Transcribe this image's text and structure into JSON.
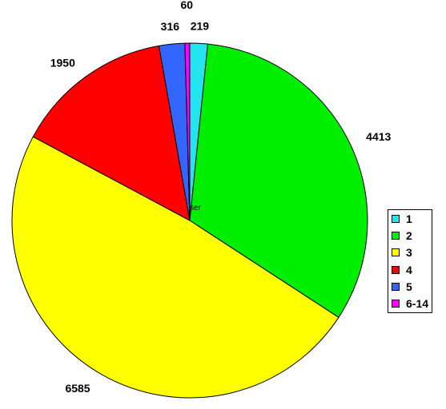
{
  "chart_data": {
    "type": "pie",
    "center_label": "ser",
    "slices": [
      {
        "label": "1",
        "value": 219,
        "color": "#22e5f0"
      },
      {
        "label": "2",
        "value": 4413,
        "color": "#00ee00"
      },
      {
        "label": "3",
        "value": 6585,
        "color": "#ffff00"
      },
      {
        "label": "4",
        "value": 1950,
        "color": "#ff0000"
      },
      {
        "label": "5",
        "value": 316,
        "color": "#3366ff"
      },
      {
        "label": "6-14",
        "value": 60,
        "color": "#ff00ff"
      }
    ],
    "legend_position": "right"
  }
}
